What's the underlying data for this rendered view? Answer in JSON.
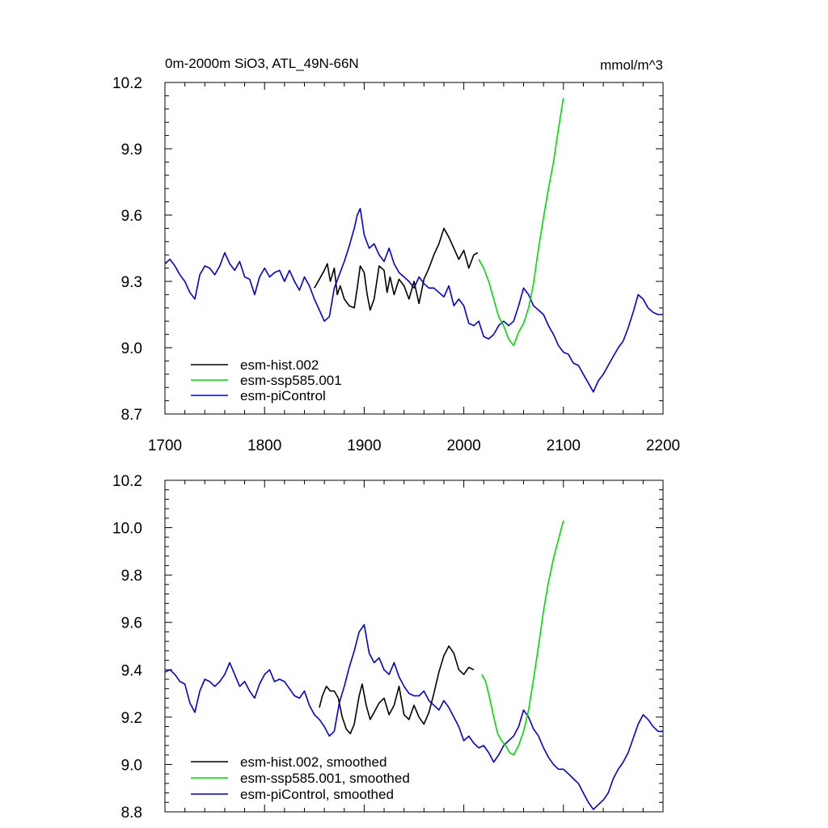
{
  "chart_data": [
    {
      "type": "line",
      "title": "0m-2000m SiO3, ATL_49N-66N",
      "units": "mmol/m^3",
      "xlabel": "",
      "ylabel": "",
      "xlim": [
        1700,
        2200
      ],
      "ylim": [
        8.7,
        10.2
      ],
      "xticks": [
        1700,
        1800,
        1900,
        2000,
        2100,
        2200
      ],
      "xtick_labels": [
        "1700",
        "1800",
        "1900",
        "2000",
        "2100",
        "2200"
      ],
      "yticks": [
        8.7,
        9.0,
        9.3,
        9.6,
        9.9,
        10.2
      ],
      "ytick_labels": [
        "8.7",
        "9.0",
        "9.3",
        "9.6",
        "9.9",
        "10.2"
      ],
      "legend_position": "bottom-left",
      "series": [
        {
          "name": "esm-hist.002",
          "color": "#000000",
          "x": [
            1850,
            1855,
            1860,
            1863,
            1866,
            1870,
            1873,
            1876,
            1880,
            1885,
            1890,
            1893,
            1896,
            1900,
            1903,
            1906,
            1910,
            1915,
            1920,
            1923,
            1926,
            1930,
            1935,
            1940,
            1945,
            1950,
            1955,
            1960,
            1965,
            1970,
            1975,
            1980,
            1985,
            1990,
            1995,
            2000,
            2005,
            2010,
            2014
          ],
          "values": [
            9.27,
            9.31,
            9.35,
            9.38,
            9.3,
            9.36,
            9.24,
            9.28,
            9.22,
            9.19,
            9.18,
            9.27,
            9.37,
            9.34,
            9.24,
            9.17,
            9.22,
            9.37,
            9.35,
            9.25,
            9.32,
            9.24,
            9.31,
            9.28,
            9.22,
            9.3,
            9.2,
            9.31,
            9.36,
            9.42,
            9.47,
            9.54,
            9.5,
            9.45,
            9.4,
            9.44,
            9.36,
            9.42,
            9.43
          ]
        },
        {
          "name": "esm-ssp585.001",
          "color": "#00dd00",
          "x": [
            2015,
            2020,
            2025,
            2030,
            2035,
            2040,
            2045,
            2050,
            2055,
            2060,
            2065,
            2070,
            2075,
            2080,
            2085,
            2090,
            2095,
            2100
          ],
          "values": [
            9.4,
            9.36,
            9.3,
            9.22,
            9.14,
            9.1,
            9.04,
            9.01,
            9.07,
            9.11,
            9.18,
            9.29,
            9.45,
            9.59,
            9.72,
            9.84,
            9.99,
            10.13
          ]
        },
        {
          "name": "esm-piControl",
          "color": "#0000dd",
          "x": [
            1700,
            1705,
            1710,
            1715,
            1720,
            1725,
            1730,
            1735,
            1740,
            1745,
            1750,
            1755,
            1760,
            1765,
            1770,
            1775,
            1780,
            1785,
            1790,
            1795,
            1800,
            1805,
            1810,
            1815,
            1820,
            1825,
            1830,
            1835,
            1840,
            1845,
            1850,
            1855,
            1860,
            1865,
            1870,
            1875,
            1880,
            1885,
            1890,
            1893,
            1896,
            1900,
            1905,
            1910,
            1915,
            1920,
            1925,
            1930,
            1935,
            1940,
            1945,
            1950,
            1955,
            1960,
            1965,
            1970,
            1975,
            1980,
            1985,
            1990,
            1995,
            2000,
            2005,
            2010,
            2015,
            2020,
            2025,
            2030,
            2035,
            2040,
            2045,
            2050,
            2055,
            2060,
            2065,
            2070,
            2075,
            2080,
            2085,
            2090,
            2095,
            2100,
            2105,
            2110,
            2115,
            2120,
            2125,
            2130,
            2135,
            2140,
            2145,
            2150,
            2155,
            2160,
            2165,
            2170,
            2175,
            2180,
            2185,
            2190,
            2195,
            2200
          ],
          "values": [
            9.38,
            9.4,
            9.37,
            9.33,
            9.3,
            9.25,
            9.22,
            9.33,
            9.37,
            9.36,
            9.33,
            9.37,
            9.43,
            9.38,
            9.35,
            9.39,
            9.32,
            9.31,
            9.24,
            9.32,
            9.36,
            9.32,
            9.34,
            9.35,
            9.3,
            9.35,
            9.3,
            9.26,
            9.32,
            9.28,
            9.22,
            9.17,
            9.12,
            9.14,
            9.27,
            9.33,
            9.39,
            9.46,
            9.54,
            9.6,
            9.63,
            9.51,
            9.45,
            9.47,
            9.42,
            9.39,
            9.45,
            9.38,
            9.34,
            9.32,
            9.3,
            9.27,
            9.32,
            9.29,
            9.27,
            9.27,
            9.25,
            9.23,
            9.28,
            9.19,
            9.22,
            9.19,
            9.11,
            9.1,
            9.12,
            9.05,
            9.04,
            9.06,
            9.1,
            9.12,
            9.1,
            9.12,
            9.19,
            9.27,
            9.24,
            9.19,
            9.17,
            9.15,
            9.1,
            9.06,
            9.01,
            8.98,
            8.97,
            8.93,
            8.92,
            8.88,
            8.84,
            8.8,
            8.85,
            8.88,
            8.92,
            8.96,
            9.0,
            9.03,
            9.09,
            9.16,
            9.24,
            9.22,
            9.18,
            9.16,
            9.15,
            9.15
          ]
        }
      ]
    },
    {
      "type": "line",
      "title": "",
      "xlabel": "",
      "ylabel": "",
      "xlim": [
        1700,
        2200
      ],
      "ylim": [
        8.8,
        10.2
      ],
      "xticks": [
        1700,
        1800,
        1900,
        2000,
        2100,
        2200
      ],
      "yticks": [
        8.8,
        9.0,
        9.2,
        9.4,
        9.6,
        9.8,
        10.0,
        10.2
      ],
      "ytick_labels": [
        "8.8",
        "9.0",
        "9.2",
        "9.4",
        "9.6",
        "9.8",
        "10.0",
        "10.2"
      ],
      "legend_position": "bottom-left",
      "series": [
        {
          "name": "esm-hist.002, smoothed",
          "color": "#000000",
          "x": [
            1855,
            1858,
            1862,
            1866,
            1870,
            1874,
            1878,
            1882,
            1886,
            1890,
            1895,
            1898,
            1902,
            1906,
            1910,
            1915,
            1920,
            1925,
            1930,
            1935,
            1940,
            1945,
            1950,
            1955,
            1960,
            1965,
            1970,
            1975,
            1980,
            1985,
            1990,
            1995,
            2000,
            2005,
            2010
          ],
          "values": [
            9.24,
            9.29,
            9.33,
            9.31,
            9.31,
            9.28,
            9.2,
            9.15,
            9.13,
            9.17,
            9.29,
            9.34,
            9.25,
            9.19,
            9.22,
            9.26,
            9.28,
            9.21,
            9.25,
            9.33,
            9.21,
            9.19,
            9.25,
            9.2,
            9.17,
            9.22,
            9.3,
            9.39,
            9.46,
            9.5,
            9.47,
            9.4,
            9.38,
            9.41,
            9.4
          ]
        },
        {
          "name": "esm-ssp585.001, smoothed",
          "color": "#00dd00",
          "x": [
            2018,
            2022,
            2026,
            2030,
            2034,
            2038,
            2042,
            2046,
            2050,
            2055,
            2060,
            2065,
            2070,
            2075,
            2080,
            2085,
            2090,
            2095,
            2100
          ],
          "values": [
            9.38,
            9.35,
            9.28,
            9.2,
            9.13,
            9.1,
            9.08,
            9.05,
            9.04,
            9.08,
            9.14,
            9.23,
            9.36,
            9.5,
            9.65,
            9.77,
            9.87,
            9.95,
            10.03
          ]
        },
        {
          "name": "esm-piControl, smoothed",
          "color": "#0000dd",
          "x": [
            1700,
            1705,
            1710,
            1715,
            1720,
            1725,
            1730,
            1735,
            1740,
            1745,
            1750,
            1755,
            1760,
            1765,
            1770,
            1775,
            1780,
            1785,
            1790,
            1795,
            1800,
            1805,
            1810,
            1815,
            1820,
            1825,
            1830,
            1835,
            1840,
            1845,
            1850,
            1855,
            1860,
            1865,
            1870,
            1875,
            1880,
            1885,
            1890,
            1895,
            1900,
            1905,
            1910,
            1915,
            1920,
            1925,
            1930,
            1935,
            1940,
            1945,
            1950,
            1955,
            1960,
            1965,
            1970,
            1975,
            1980,
            1985,
            1990,
            1995,
            2000,
            2005,
            2010,
            2015,
            2020,
            2025,
            2030,
            2035,
            2040,
            2045,
            2050,
            2055,
            2060,
            2065,
            2070,
            2075,
            2080,
            2085,
            2090,
            2095,
            2100,
            2105,
            2110,
            2115,
            2120,
            2125,
            2130,
            2135,
            2140,
            2145,
            2150,
            2155,
            2160,
            2165,
            2170,
            2175,
            2180,
            2185,
            2190,
            2195,
            2200
          ],
          "values": [
            9.39,
            9.4,
            9.38,
            9.35,
            9.34,
            9.26,
            9.22,
            9.31,
            9.36,
            9.35,
            9.33,
            9.35,
            9.38,
            9.43,
            9.38,
            9.33,
            9.35,
            9.31,
            9.28,
            9.34,
            9.38,
            9.4,
            9.35,
            9.36,
            9.35,
            9.32,
            9.29,
            9.28,
            9.31,
            9.25,
            9.21,
            9.19,
            9.16,
            9.12,
            9.14,
            9.26,
            9.33,
            9.41,
            9.48,
            9.56,
            9.59,
            9.47,
            9.43,
            9.45,
            9.4,
            9.38,
            9.43,
            9.37,
            9.33,
            9.3,
            9.29,
            9.29,
            9.31,
            9.27,
            9.25,
            9.23,
            9.27,
            9.24,
            9.2,
            9.16,
            9.1,
            9.12,
            9.09,
            9.07,
            9.08,
            9.05,
            9.01,
            9.04,
            9.08,
            9.1,
            9.12,
            9.16,
            9.23,
            9.2,
            9.15,
            9.12,
            9.07,
            9.03,
            9.0,
            8.98,
            8.98,
            8.96,
            8.94,
            8.92,
            8.88,
            8.84,
            8.81,
            8.83,
            8.85,
            8.88,
            8.94,
            8.98,
            9.01,
            9.05,
            9.11,
            9.17,
            9.21,
            9.19,
            9.16,
            9.14,
            9.14
          ]
        }
      ]
    }
  ]
}
